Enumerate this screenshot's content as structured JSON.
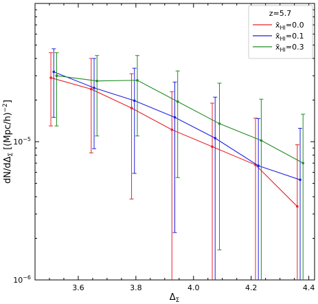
{
  "chart_data": {
    "type": "line",
    "xlabel": "Δ",
    "xlabel_sub": "Σ",
    "ylabel": "dN/dΔ",
    "ylabel_sub": "Σ",
    "ylabel_unit": "[(Mpc/h)",
    "ylabel_exp": "−2",
    "ylabel_close": "]",
    "xlim": [
      3.45,
      4.42
    ],
    "ylim": [
      1e-06,
      0.0001
    ],
    "yscale": "log",
    "x_ticks": [
      {
        "value": 3.6,
        "label": "3.6"
      },
      {
        "value": 3.8,
        "label": "3.8"
      },
      {
        "value": 4.0,
        "label": "4.0"
      },
      {
        "value": 4.2,
        "label": "4.2"
      },
      {
        "value": 4.4,
        "label": "4.4"
      }
    ],
    "y_ticks": [
      {
        "value": 1e-06,
        "base": "10",
        "exp": "−6"
      },
      {
        "value": 1e-05,
        "base": "10",
        "exp": "−5"
      }
    ],
    "legend": {
      "title": "z=5.7",
      "position": "top-right"
    },
    "series": [
      {
        "name": "x̄",
        "name_sub": "HI",
        "name_suffix": "=0.0",
        "color": "#e8202a",
        "x": [
          3.505,
          3.645,
          3.785,
          3.925,
          4.065,
          4.215,
          4.36
        ],
        "y": [
          2.9e-05,
          2.4e-05,
          1.75e-05,
          1.22e-05,
          9.2e-06,
          6.8e-06,
          3.4e-06
        ],
        "y_low": [
          1.3e-05,
          8.3e-06,
          3.85e-06,
          1e-06,
          1e-06,
          1e-06,
          1e-06
        ],
        "y_high": [
          4.4e-05,
          4e-05,
          3.1e-05,
          2.3e-05,
          1.9e-05,
          1.48e-05,
          9.5e-06
        ]
      },
      {
        "name": "x̄",
        "name_sub": "HI",
        "name_suffix": "=0.1",
        "color": "#1f1fe0",
        "x": [
          3.515,
          3.655,
          3.795,
          3.935,
          4.075,
          4.225,
          4.37
        ],
        "y": [
          3.2e-05,
          2.45e-05,
          1.98e-05,
          1.5e-05,
          1.06e-05,
          6.7e-06,
          5.3e-06
        ],
        "y_low": [
          1.5e-05,
          8.9e-06,
          5.9e-06,
          2.2e-06,
          1e-06,
          1e-06,
          1e-06
        ],
        "y_high": [
          4.7e-05,
          4e-05,
          3.4e-05,
          2.7e-05,
          2.1e-05,
          1.47e-05,
          1.25e-05
        ]
      },
      {
        "name": "x̄",
        "name_sub": "HI",
        "name_suffix": "=0.3",
        "color": "#1d8a1d",
        "x": [
          3.525,
          3.665,
          3.805,
          3.945,
          4.09,
          4.235,
          4.38
        ],
        "y": [
          3e-05,
          2.75e-05,
          2.78e-05,
          1.95e-05,
          1.35e-05,
          1.02e-05,
          7e-06
        ],
        "y_low": [
          1.3e-05,
          1.1e-05,
          1.1e-05,
          5.5e-06,
          1.65e-06,
          1e-06,
          1e-06
        ],
        "y_high": [
          4.4e-05,
          4.2e-05,
          4.2e-05,
          3.25e-05,
          2.65e-05,
          2.03e-05,
          1.58e-05
        ]
      }
    ]
  }
}
